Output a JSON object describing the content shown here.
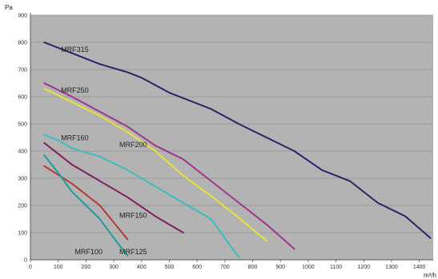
{
  "chart_data": {
    "type": "line",
    "title": "",
    "xlabel": "m³/h",
    "ylabel": "Pa",
    "xlim": [
      0,
      1450
    ],
    "ylim": [
      0,
      900
    ],
    "x_ticks": [
      "0",
      "100",
      "200",
      "300",
      "400",
      "500",
      "600",
      "700",
      "800",
      "900",
      "1000",
      "1100",
      "1200",
      "1300",
      "1400"
    ],
    "y_ticks": [
      "0",
      "100",
      "200",
      "300",
      "400",
      "500",
      "600",
      "700",
      "800",
      "900"
    ],
    "grid": true,
    "legend": "none",
    "plot_background": "#b3b3b3",
    "gridline_color": "#8f8f8f",
    "series": [
      {
        "name": "MRF315",
        "color": "#2a2368",
        "x": [
          50,
          150,
          250,
          350,
          400,
          500,
          650,
          750,
          850,
          950,
          1050,
          1150,
          1250,
          1350,
          1440
        ],
        "y": [
          800,
          760,
          720,
          690,
          670,
          615,
          555,
          500,
          450,
          400,
          330,
          290,
          210,
          160,
          80
        ]
      },
      {
        "name": "MRF250",
        "color": "#a0368c",
        "x": [
          50,
          150,
          250,
          350,
          450,
          550,
          650,
          750,
          850,
          950
        ],
        "y": [
          650,
          600,
          545,
          490,
          420,
          370,
          290,
          210,
          130,
          40
        ]
      },
      {
        "name": "MRF200",
        "color": "#e6e23c",
        "x": [
          50,
          150,
          250,
          350,
          450,
          550,
          650,
          750,
          850
        ],
        "y": [
          630,
          580,
          530,
          470,
          400,
          310,
          235,
          155,
          70
        ]
      },
      {
        "name": "MRF160",
        "color": "#3cbcbc",
        "x": [
          50,
          100,
          150,
          250,
          350,
          450,
          550,
          650,
          750
        ],
        "y": [
          460,
          440,
          410,
          380,
          330,
          270,
          210,
          150,
          10
        ]
      },
      {
        "name": "MRF150",
        "color": "#7e1f5e",
        "x": [
          50,
          150,
          250,
          350,
          450,
          550
        ],
        "y": [
          430,
          350,
          290,
          230,
          160,
          100
        ]
      },
      {
        "name": "MRF125",
        "color": "#b23a3a",
        "x": [
          50,
          150,
          250,
          350
        ],
        "y": [
          345,
          280,
          200,
          75
        ]
      },
      {
        "name": "MRF100",
        "color": "#1e9c9c",
        "x": [
          50,
          100,
          150,
          200,
          250,
          300,
          350
        ],
        "y": [
          385,
          320,
          250,
          200,
          150,
          80,
          15
        ]
      }
    ],
    "annotations": [
      {
        "text": "MRF315",
        "x": 110,
        "y": 765,
        "series": "MRF315"
      },
      {
        "text": "MRF250",
        "x": 110,
        "y": 615,
        "series": "MRF250"
      },
      {
        "text": "MRF200",
        "x": 320,
        "y": 415,
        "series": "MRF200"
      },
      {
        "text": "MRF160",
        "x": 110,
        "y": 440,
        "series": "MRF160"
      },
      {
        "text": "MRF150",
        "x": 320,
        "y": 155,
        "series": "MRF150"
      },
      {
        "text": "MRF125",
        "x": 320,
        "y": 20,
        "series": "MRF125"
      },
      {
        "text": "MRF100",
        "x": 160,
        "y": 20,
        "series": "MRF100"
      }
    ]
  }
}
